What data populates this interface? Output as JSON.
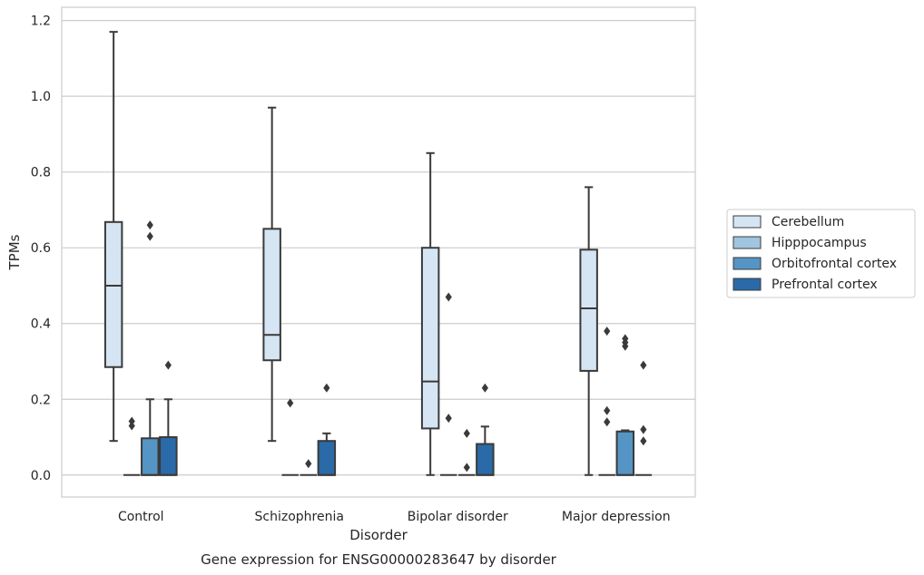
{
  "chart_data": {
    "type": "box",
    "caption": "Gene expression for ENSG00000283647 by disorder",
    "xlabel": "Disorder",
    "ylabel": "TPMs",
    "ylim": [
      -0.058,
      1.235
    ],
    "yticks": [
      0.0,
      0.2,
      0.4,
      0.6,
      0.8,
      1.0,
      1.2
    ],
    "ytick_labels": [
      "0.0",
      "0.2",
      "0.4",
      "0.6",
      "0.8",
      "1.0",
      "1.2"
    ],
    "grid": "horizontal",
    "legend_position": "right",
    "categories": [
      "Control",
      "Schizophrenia",
      "Bipolar disorder",
      "Major depression"
    ],
    "series": [
      {
        "name": "Cerebellum",
        "color": "#d6e5f3",
        "boxes": [
          {
            "whisker_low": 0.09,
            "q1": 0.285,
            "median": 0.5,
            "q3": 0.668,
            "whisker_high": 1.17,
            "outliers": []
          },
          {
            "whisker_low": 0.09,
            "q1": 0.303,
            "median": 0.37,
            "q3": 0.65,
            "whisker_high": 0.97,
            "outliers": []
          },
          {
            "whisker_low": 0.0,
            "q1": 0.123,
            "median": 0.247,
            "q3": 0.6,
            "whisker_high": 0.85,
            "outliers": []
          },
          {
            "whisker_low": 0.0,
            "q1": 0.275,
            "median": 0.44,
            "q3": 0.595,
            "whisker_high": 0.76,
            "outliers": []
          }
        ]
      },
      {
        "name": "Hipppocampus",
        "color": "#a0c5df",
        "boxes": [
          {
            "whisker_low": 0.0,
            "q1": 0.0,
            "median": 0.0,
            "q3": 0.0,
            "whisker_high": 0.0,
            "outliers": [
              0.13,
              0.142
            ]
          },
          {
            "whisker_low": 0.0,
            "q1": 0.0,
            "median": 0.0,
            "q3": 0.0,
            "whisker_high": 0.0,
            "outliers": [
              0.19
            ]
          },
          {
            "whisker_low": 0.0,
            "q1": 0.0,
            "median": 0.0,
            "q3": 0.0,
            "whisker_high": 0.0,
            "outliers": [
              0.15,
              0.47
            ]
          },
          {
            "whisker_low": 0.0,
            "q1": 0.0,
            "median": 0.0,
            "q3": 0.0,
            "whisker_high": 0.0,
            "outliers": [
              0.14,
              0.17,
              0.38
            ]
          }
        ]
      },
      {
        "name": "Orbitofrontal cortex",
        "color": "#5495c5",
        "boxes": [
          {
            "whisker_low": 0.0,
            "q1": 0.0,
            "median": 0.0,
            "q3": 0.097,
            "whisker_high": 0.2,
            "outliers": [
              0.63,
              0.66
            ]
          },
          {
            "whisker_low": 0.0,
            "q1": 0.0,
            "median": 0.0,
            "q3": 0.0,
            "whisker_high": 0.0,
            "outliers": [
              0.03
            ]
          },
          {
            "whisker_low": 0.0,
            "q1": 0.0,
            "median": 0.0,
            "q3": 0.0,
            "whisker_high": 0.0,
            "outliers": [
              0.02,
              0.11
            ]
          },
          {
            "whisker_low": 0.0,
            "q1": 0.0,
            "median": 0.0,
            "q3": 0.115,
            "whisker_high": 0.118,
            "outliers": [
              0.34,
              0.35,
              0.36
            ]
          }
        ]
      },
      {
        "name": "Prefrontal cortex",
        "color": "#2a6aa8",
        "boxes": [
          {
            "whisker_low": 0.0,
            "q1": 0.0,
            "median": 0.0,
            "q3": 0.1,
            "whisker_high": 0.2,
            "outliers": [
              0.29
            ]
          },
          {
            "whisker_low": 0.0,
            "q1": 0.0,
            "median": 0.0,
            "q3": 0.09,
            "whisker_high": 0.11,
            "outliers": [
              0.23
            ]
          },
          {
            "whisker_low": 0.0,
            "q1": 0.0,
            "median": 0.0,
            "q3": 0.082,
            "whisker_high": 0.128,
            "outliers": [
              0.23
            ]
          },
          {
            "whisker_low": 0.0,
            "q1": 0.0,
            "median": 0.0,
            "q3": 0.0,
            "whisker_high": 0.0,
            "outliers": [
              0.09,
              0.12,
              0.29
            ]
          }
        ]
      }
    ]
  }
}
